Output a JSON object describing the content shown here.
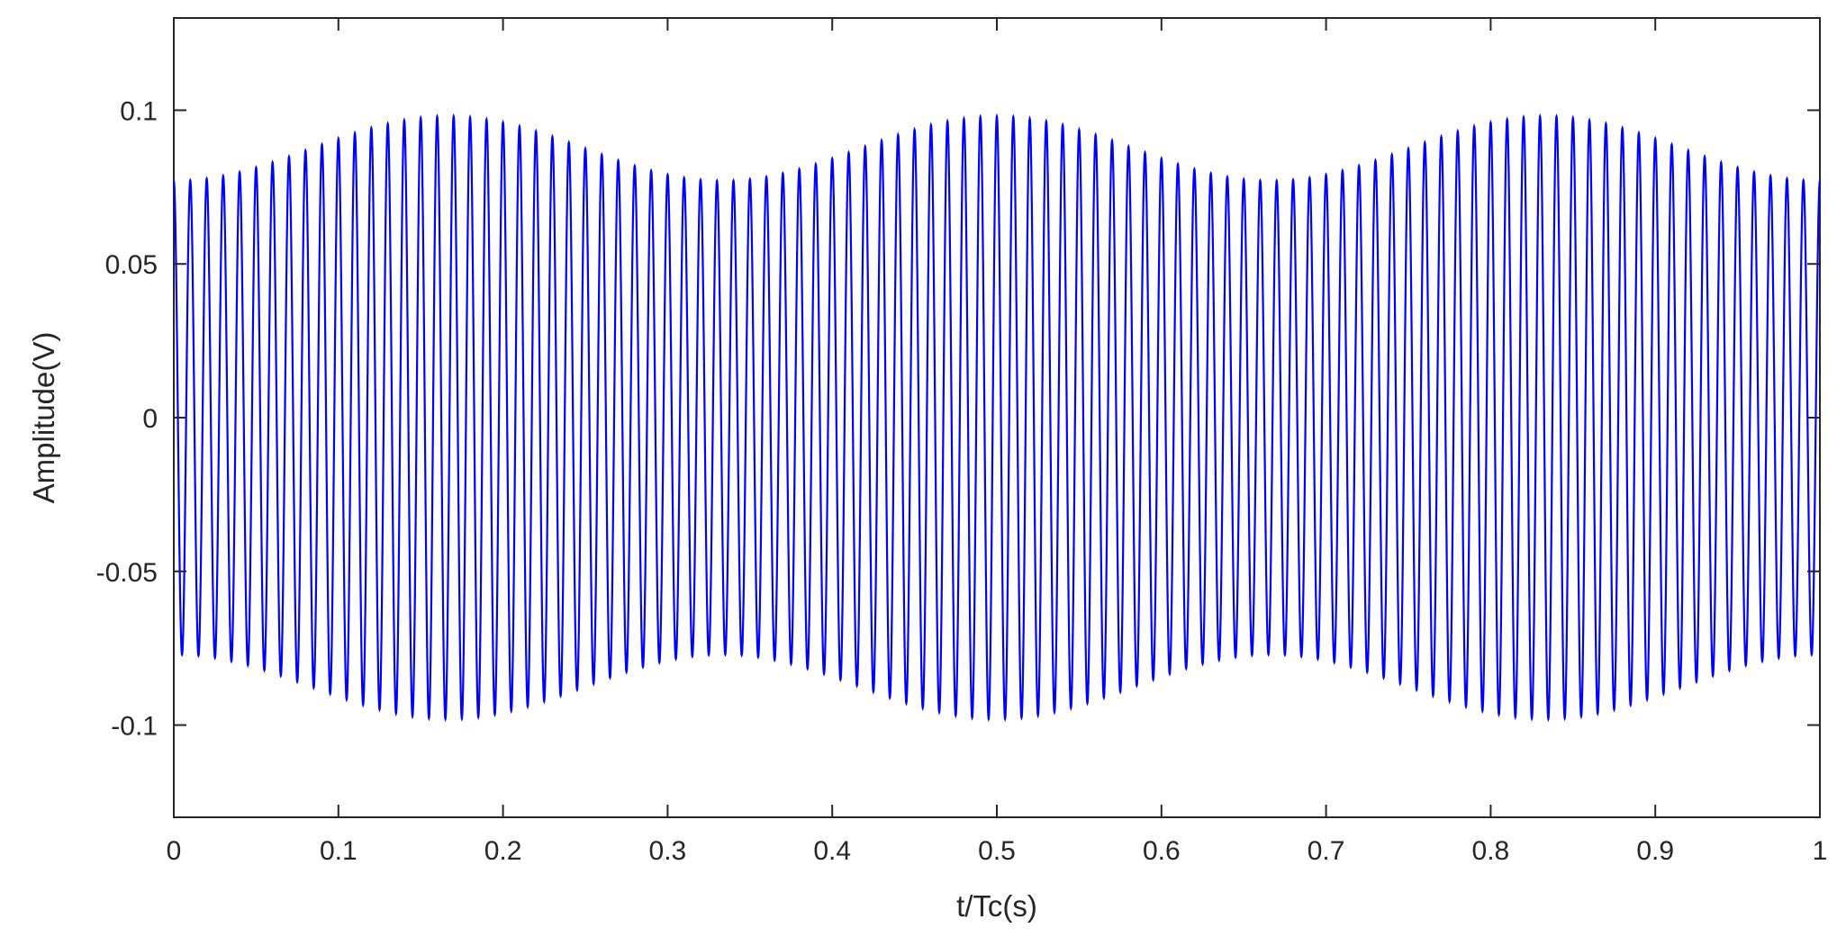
{
  "chart_data": {
    "type": "line",
    "title": "",
    "xlabel": "t/Tc(s)",
    "ylabel": "Amplitude(V)",
    "xlim": [
      0,
      1
    ],
    "ylim": [
      -0.13,
      0.13
    ],
    "xticks": [
      "0",
      "0.1",
      "0.2",
      "0.3",
      "0.4",
      "0.5",
      "0.6",
      "0.7",
      "0.8",
      "0.9",
      "1"
    ],
    "yticks": [
      "0.1",
      "0.05",
      "0",
      "-0.05",
      "-0.1"
    ],
    "grid": false,
    "line_color": "#0000ff",
    "series": [
      {
        "description_values": {
          "carrier_cycles": 100,
          "envelope_mean": 0.0875,
          "envelope_swing": 0.0105,
          "envelope_cycles": 3,
          "envelope_peaks_at_x": [
            0.17,
            0.5,
            0.83
          ],
          "envelope_troughs_at_x": [
            0.0,
            0.33,
            0.67,
            1.0
          ]
        }
      }
    ]
  }
}
